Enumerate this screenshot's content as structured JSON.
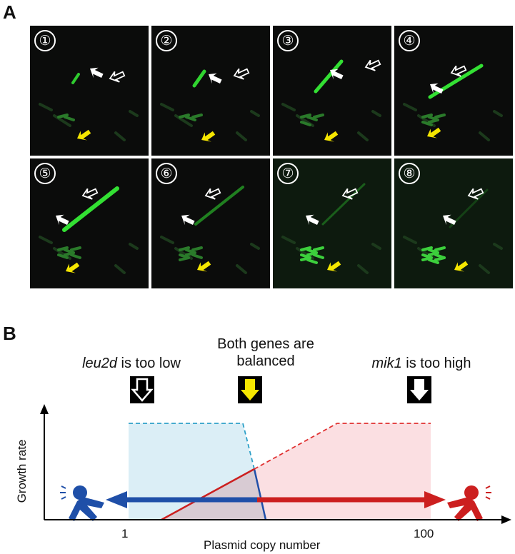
{
  "panel_a": {
    "label": "A",
    "frames": [
      "①",
      "②",
      "③",
      "④",
      "⑤",
      "⑥",
      "⑦",
      "⑧"
    ]
  },
  "panel_b": {
    "label": "B",
    "left_caption": {
      "italic": "leu2d",
      "rest": " is too low"
    },
    "middle_caption": [
      "Both genes are",
      "balanced"
    ],
    "right_caption": {
      "italic": "mik1",
      "rest": " is too high"
    },
    "x_axis_label": "Plasmid copy number",
    "y_axis_label": "Growth rate",
    "x_ticks": [
      "1",
      "100"
    ],
    "colors": {
      "blue": "#1f4fa8",
      "red": "#cc1f1f",
      "light_blue": "#dbeef6",
      "light_red": "#fbdcdf",
      "yellow": "#f5e600"
    }
  }
}
